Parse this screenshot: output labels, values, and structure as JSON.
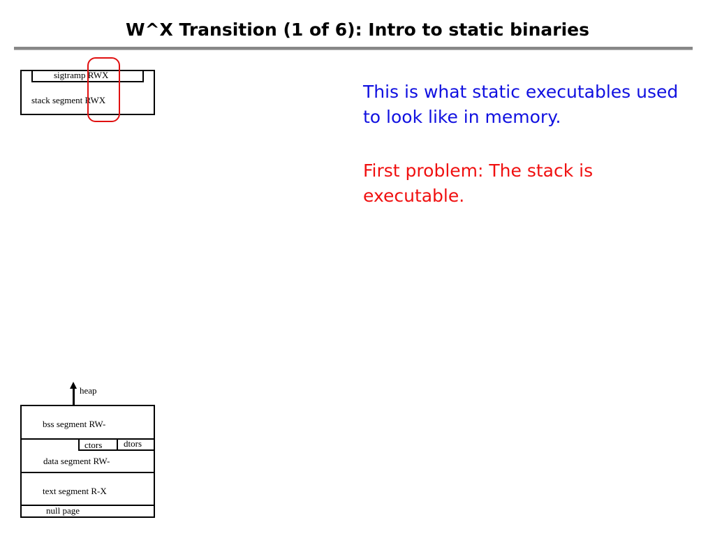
{
  "title": "W^X Transition (1 of 6):  Intro to static binaries",
  "diagram": {
    "stack": {
      "sigtramp": "sigtramp RWX",
      "stack_segment": "stack segment RWX"
    },
    "lower": {
      "heap": "heap",
      "bss": "bss segment RW-",
      "ctors": "ctors",
      "dtors": "dtors",
      "data": "data segment RW-",
      "text": "text segment  R-X",
      "null_page": "null page"
    },
    "highlight_color": "#e01010"
  },
  "notes": {
    "line1": "This is what static executables used to look like in memory.",
    "line1_color": "#1010e0",
    "line2": "First problem: The stack is executable.",
    "line2_color": "#f01010"
  }
}
